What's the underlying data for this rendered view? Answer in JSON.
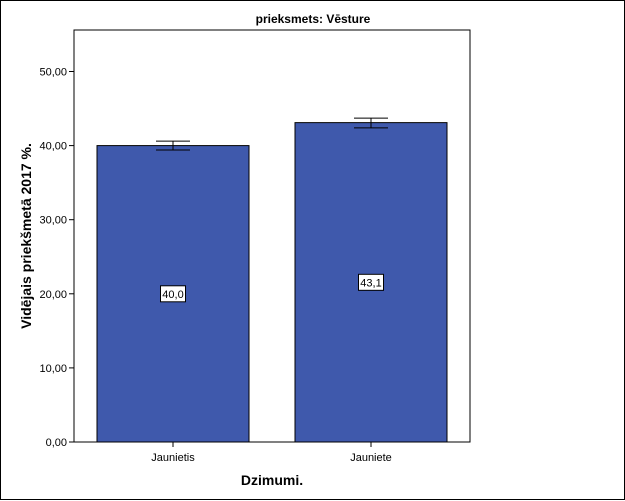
{
  "chart_data": {
    "type": "bar",
    "title": "prieksmets: Vēsture",
    "xlabel": "Dzimumi.",
    "ylabel": "Vidējais priekšmetā 2017 %.",
    "categories": [
      "Jaunietis",
      "Jauniete"
    ],
    "values": [
      40.0,
      43.1
    ],
    "value_labels": [
      "40,0",
      "43,1"
    ],
    "error_bars": [
      [
        39.4,
        40.6
      ],
      [
        42.4,
        43.7
      ]
    ],
    "ylim": [
      0,
      55.6
    ],
    "yticks": [
      0,
      10,
      20,
      30,
      40,
      50
    ],
    "ytick_labels": [
      "0,00",
      "10,00",
      "20,00",
      "30,00",
      "40,00",
      "50,00"
    ],
    "bar_color": "#3f59ac",
    "grid": false,
    "legend": "none"
  }
}
